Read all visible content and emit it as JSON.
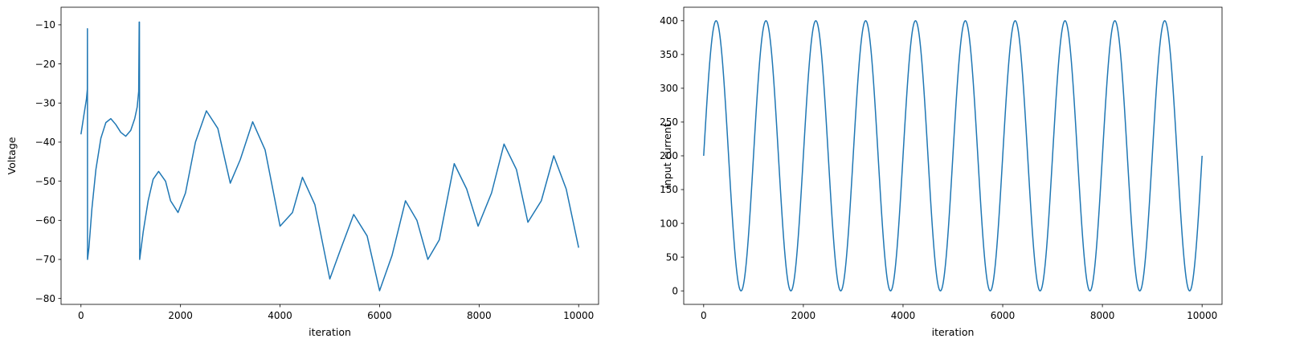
{
  "chart_data": [
    {
      "type": "line",
      "title": "",
      "xlabel": "iteration",
      "ylabel": "Voltage",
      "xlim": [
        -400,
        10400
      ],
      "ylim": [
        -81.5,
        -5.5
      ],
      "xticks": [
        0,
        2000,
        4000,
        6000,
        8000,
        10000
      ],
      "xtick_labels": [
        "0",
        "2000",
        "4000",
        "6000",
        "8000",
        "10000"
      ],
      "yticks": [
        -80,
        -70,
        -60,
        -50,
        -40,
        -30,
        -20,
        -10
      ],
      "ytick_labels": [
        "−80",
        "−70",
        "−60",
        "−50",
        "−40",
        "−30",
        "−20",
        "−10"
      ],
      "grid": false,
      "line_color": "#1f77b4",
      "series": [
        {
          "x": [
            0,
            60,
            110,
            128,
            130,
            132,
            160,
            220,
            300,
            400,
            500,
            600,
            700,
            800,
            900,
            1000,
            1080,
            1130,
            1160,
            1170,
            1175,
            1180,
            1190,
            1250,
            1350,
            1450,
            1560,
            1700,
            1800,
            1950,
            2100,
            2300,
            2520,
            2750,
            3000,
            3200,
            3450,
            3700,
            4000,
            4250,
            4450,
            4700,
            5000,
            5200,
            5480,
            5750,
            6000,
            6250,
            6520,
            6750,
            6970,
            7200,
            7500,
            7750,
            7980,
            8250,
            8500,
            8750,
            8980,
            9250,
            9500,
            9750,
            10000
          ],
          "y": [
            -38,
            -33,
            -29,
            -26.5,
            -11,
            -70,
            -67,
            -57,
            -47,
            -39,
            -35,
            -34,
            -35.5,
            -37.5,
            -38.5,
            -37,
            -34,
            -31,
            -27,
            -9.3,
            -9.3,
            -70,
            -69,
            -63,
            -55,
            -49.5,
            -47.5,
            -50,
            -55,
            -58,
            -53,
            -40,
            -32,
            -36.5,
            -50.5,
            -44.5,
            -34.8,
            -42,
            -61.5,
            -58,
            -49,
            -56,
            -75,
            -68,
            -58.5,
            -64,
            -78,
            -69,
            -55,
            -60,
            -70,
            -65,
            -45.5,
            -52,
            -61.5,
            -53,
            -40.5,
            -47,
            -60.5,
            -55,
            -43.5,
            -52,
            -67
          ]
        }
      ]
    },
    {
      "type": "line",
      "title": "",
      "xlabel": "iteration",
      "ylabel": "input current",
      "xlim": [
        -400,
        10400
      ],
      "ylim": [
        -20,
        420
      ],
      "xticks": [
        0,
        2000,
        4000,
        6000,
        8000,
        10000
      ],
      "xtick_labels": [
        "0",
        "2000",
        "4000",
        "6000",
        "8000",
        "10000"
      ],
      "yticks": [
        0,
        50,
        100,
        150,
        200,
        250,
        300,
        350,
        400
      ],
      "ytick_labels": [
        "0",
        "50",
        "100",
        "150",
        "200",
        "250",
        "300",
        "350",
        "400"
      ],
      "grid": false,
      "line_color": "#1f77b4",
      "series": [
        {
          "function": "200 + 200*sin(2*pi*x/1000)",
          "x_range": [
            0,
            10000
          ],
          "period": 1000,
          "min": 0,
          "max": 400
        }
      ]
    }
  ]
}
